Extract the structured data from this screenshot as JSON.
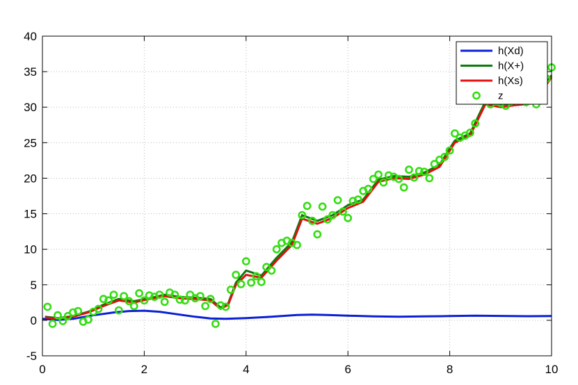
{
  "chart_data": {
    "type": "line",
    "title": "",
    "xlabel": "",
    "ylabel": "",
    "xlim": [
      0,
      10
    ],
    "ylim": [
      -5,
      40
    ],
    "xticks": [
      0,
      2,
      4,
      6,
      8,
      10
    ],
    "yticks": [
      -5,
      0,
      5,
      10,
      15,
      20,
      25,
      30,
      35,
      40
    ],
    "xtick_labels": [
      "0",
      "2",
      "4",
      "6",
      "8",
      "10"
    ],
    "ytick_labels": [
      "-5",
      "0",
      "5",
      "10",
      "15",
      "20",
      "25",
      "30",
      "35",
      "40"
    ],
    "grid": true,
    "legend_position": "top-right",
    "series": [
      {
        "name": "h(Xd)",
        "style": "line",
        "color": "#0a1fd6",
        "x": [
          0.0,
          0.3,
          0.6,
          1.0,
          1.4,
          1.7,
          2.0,
          2.3,
          2.6,
          3.0,
          3.3,
          3.6,
          4.0,
          4.5,
          5.0,
          5.3,
          5.6,
          6.0,
          6.5,
          7.0,
          7.5,
          8.0,
          8.5,
          9.0,
          9.5,
          10.0
        ],
        "y": [
          0.2,
          0.05,
          0.2,
          0.7,
          1.1,
          1.3,
          1.35,
          1.2,
          0.9,
          0.5,
          0.25,
          0.2,
          0.3,
          0.5,
          0.75,
          0.8,
          0.75,
          0.65,
          0.55,
          0.5,
          0.55,
          0.6,
          0.65,
          0.62,
          0.58,
          0.6
        ]
      },
      {
        "name": "h(X+)",
        "style": "line",
        "color": "#0a7a0a",
        "x": [
          0.05,
          0.3,
          0.6,
          0.9,
          1.2,
          1.5,
          1.8,
          2.1,
          2.4,
          2.7,
          3.0,
          3.3,
          3.5,
          3.65,
          3.8,
          4.0,
          4.3,
          4.6,
          4.9,
          5.1,
          5.4,
          5.7,
          6.0,
          6.3,
          6.6,
          6.9,
          7.2,
          7.5,
          7.8,
          8.1,
          8.4,
          8.7,
          9.0,
          9.3,
          9.6,
          9.8,
          10.0
        ],
        "y": [
          0.5,
          0.3,
          0.6,
          1.2,
          2.2,
          3.0,
          2.7,
          3.1,
          3.6,
          3.3,
          3.2,
          3.0,
          1.8,
          2.4,
          5.3,
          7.0,
          6.3,
          8.8,
          11.0,
          14.8,
          14.0,
          14.8,
          16.2,
          17.0,
          19.8,
          20.3,
          20.2,
          20.8,
          21.9,
          25.3,
          26.3,
          30.8,
          30.3,
          30.6,
          30.8,
          32.5,
          34.5
        ]
      },
      {
        "name": "h(Xs)",
        "style": "line",
        "color": "#e01010",
        "x": [
          0.05,
          0.3,
          0.6,
          0.9,
          1.2,
          1.5,
          1.8,
          2.1,
          2.4,
          2.7,
          3.0,
          3.3,
          3.5,
          3.65,
          3.8,
          4.0,
          4.3,
          4.6,
          4.9,
          5.1,
          5.4,
          5.7,
          6.0,
          6.3,
          6.6,
          6.9,
          7.2,
          7.5,
          7.8,
          8.1,
          8.4,
          8.7,
          9.0,
          9.3,
          9.6,
          9.8,
          10.0
        ],
        "y": [
          0.4,
          0.2,
          0.5,
          1.1,
          2.0,
          2.8,
          2.5,
          3.0,
          3.4,
          3.1,
          3.0,
          2.8,
          1.6,
          2.2,
          5.0,
          6.4,
          6.0,
          8.4,
          10.6,
          14.3,
          13.6,
          14.4,
          15.8,
          16.7,
          19.5,
          20.0,
          19.9,
          20.5,
          21.6,
          25.0,
          26.0,
          30.4,
          30.0,
          30.3,
          30.5,
          32.2,
          34.2
        ]
      },
      {
        "name": "z",
        "style": "marker",
        "color": "#33dd11",
        "x": [
          0.1,
          0.2,
          0.3,
          0.4,
          0.5,
          0.6,
          0.7,
          0.8,
          0.9,
          1.0,
          1.1,
          1.2,
          1.3,
          1.4,
          1.5,
          1.6,
          1.7,
          1.8,
          1.9,
          2.0,
          2.1,
          2.2,
          2.3,
          2.4,
          2.5,
          2.6,
          2.7,
          2.8,
          2.9,
          3.0,
          3.1,
          3.2,
          3.3,
          3.4,
          3.5,
          3.6,
          3.7,
          3.8,
          3.9,
          4.0,
          4.1,
          4.2,
          4.3,
          4.4,
          4.5,
          4.6,
          4.7,
          4.8,
          4.9,
          5.0,
          5.1,
          5.2,
          5.3,
          5.4,
          5.5,
          5.6,
          5.7,
          5.8,
          5.9,
          6.0,
          6.1,
          6.2,
          6.3,
          6.4,
          6.5,
          6.6,
          6.7,
          6.8,
          6.9,
          7.0,
          7.1,
          7.2,
          7.3,
          7.4,
          7.5,
          7.6,
          7.7,
          7.8,
          7.9,
          8.0,
          8.1,
          8.2,
          8.3,
          8.4,
          8.5,
          8.6,
          8.7,
          8.8,
          8.9,
          9.0,
          9.1,
          9.2,
          9.3,
          9.4,
          9.5,
          9.6,
          9.7,
          9.8,
          9.9,
          10.0
        ],
        "y": [
          1.9,
          -0.5,
          0.7,
          -0.1,
          0.6,
          1.1,
          1.3,
          -0.2,
          0.1,
          1.2,
          1.6,
          3.0,
          2.8,
          3.6,
          1.4,
          3.4,
          2.7,
          2.0,
          3.8,
          2.8,
          3.5,
          3.3,
          3.6,
          2.6,
          3.9,
          3.6,
          2.9,
          2.8,
          3.6,
          3.1,
          3.4,
          2.0,
          3.0,
          -0.5,
          2.1,
          1.9,
          4.3,
          6.4,
          5.1,
          8.3,
          5.3,
          6.2,
          5.4,
          7.5,
          7.0,
          10.0,
          10.9,
          11.2,
          10.9,
          10.6,
          14.8,
          16.1,
          14.0,
          12.1,
          16.0,
          14.2,
          14.8,
          16.9,
          15.3,
          14.4,
          16.8,
          17.0,
          18.2,
          18.5,
          19.9,
          20.5,
          19.4,
          20.4,
          20.2,
          19.9,
          18.7,
          21.2,
          20.1,
          21.0,
          20.9,
          20.0,
          22.0,
          22.6,
          23.0,
          23.9,
          26.3,
          25.7,
          26.0,
          26.4,
          27.7,
          30.9,
          30.9,
          30.4,
          30.8,
          30.6,
          30.2,
          30.8,
          30.9,
          31.0,
          30.7,
          31.5,
          30.4,
          33.0,
          34.0,
          35.6
        ]
      }
    ]
  }
}
